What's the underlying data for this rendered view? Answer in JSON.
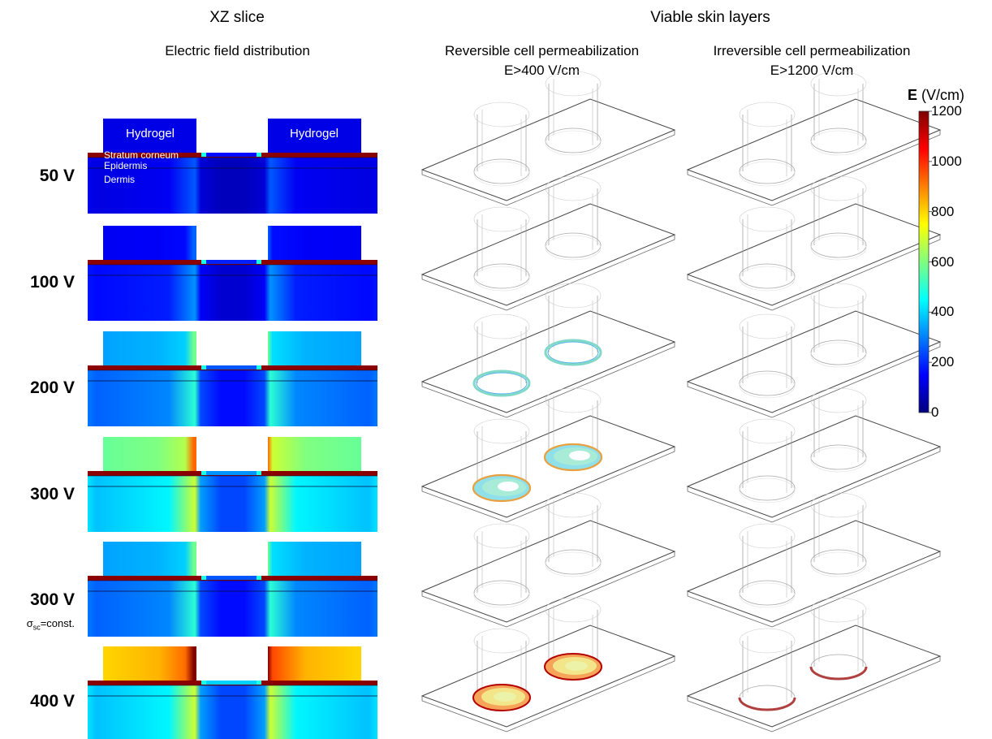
{
  "headers": {
    "xz_slice": "XZ slice",
    "electric_field": "Electric field distribution",
    "viable_skin": "Viable skin layers",
    "reversible": "Reversible cell permeabilization",
    "reversible_threshold": "E>400 V/cm",
    "irreversible": "Irreversible cell permeabilization",
    "irreversible_threshold": "E>1200 V/cm"
  },
  "layer_labels": {
    "hydrogel_left": "Hydrogel",
    "hydrogel_right": "Hydrogel",
    "stratum_corneum": "Stratum corneum",
    "epidermis": "Epidermis",
    "dermis": "Dermis"
  },
  "rows": [
    {
      "voltage": "50 V",
      "note": "",
      "gel_level": 0.05,
      "reversible": "none",
      "irreversible": "none"
    },
    {
      "voltage": "100 V",
      "note": "",
      "gel_level": 0.12,
      "reversible": "none",
      "irreversible": "none"
    },
    {
      "voltage": "200 V",
      "note": "",
      "gel_level": 0.3,
      "reversible": "thin-ring",
      "irreversible": "none"
    },
    {
      "voltage": "300 V",
      "note": "",
      "gel_level": 0.5,
      "reversible": "ring-with-hole",
      "irreversible": "none"
    },
    {
      "voltage": "300 V",
      "note": "σsc=const.",
      "gel_level": 0.3,
      "reversible": "none",
      "irreversible": "none"
    },
    {
      "voltage": "400 V",
      "note": "",
      "gel_level": 0.7,
      "reversible": "filled-disk",
      "irreversible": "thin-arc"
    }
  ],
  "sigma": {
    "symbol": "σ",
    "subscript": "sc",
    "suffix": "=const."
  },
  "colorbar": {
    "label_symbol": "E",
    "label_unit": "(V/cm)",
    "min": 0,
    "max": 1200,
    "ticks": [
      "1200",
      "1000",
      "800",
      "600",
      "400",
      "200",
      "0"
    ],
    "colormap": "jet"
  }
}
